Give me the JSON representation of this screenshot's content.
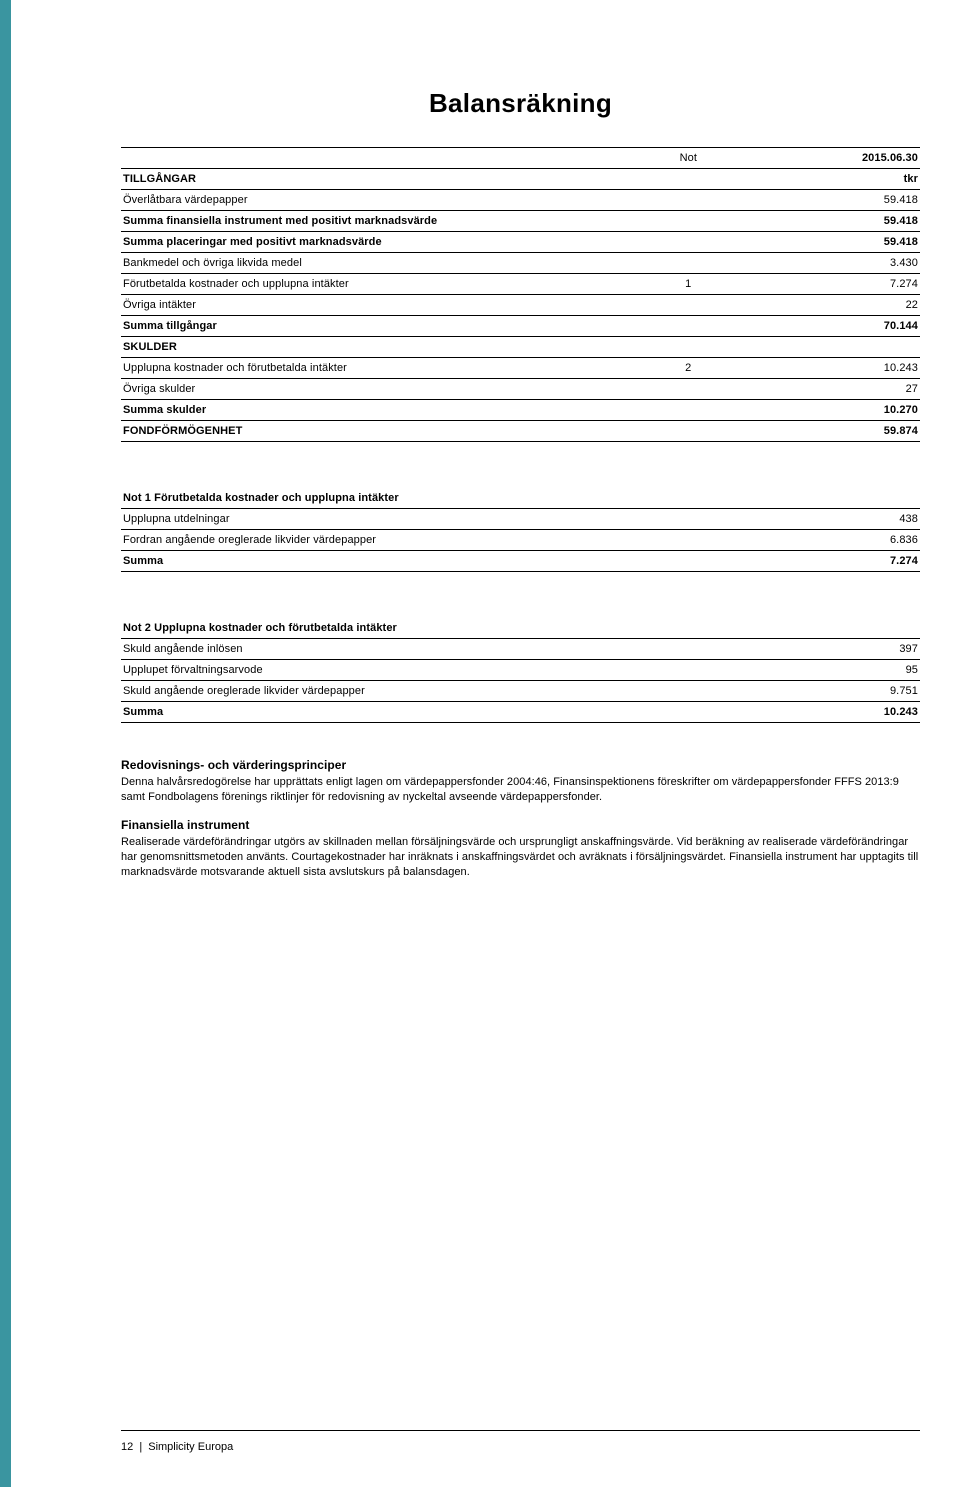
{
  "title": "Balansräkning",
  "columns": {
    "not": "Not",
    "date": "2015.06.30"
  },
  "rows": [
    {
      "label": "TILLGÅNGAR",
      "not": "",
      "value": "tkr",
      "bold": true
    },
    {
      "label": "Överlåtbara värdepapper",
      "not": "",
      "value": "59.418"
    },
    {
      "label": "Summa finansiella instrument med positivt marknadsvärde",
      "not": "",
      "value": "59.418",
      "bold": true
    },
    {
      "label": "Summa placeringar med positivt marknadsvärde",
      "not": "",
      "value": "59.418",
      "bold": true
    },
    {
      "label": "Bankmedel och övriga likvida medel",
      "not": "",
      "value": "3.430"
    },
    {
      "label": "Förutbetalda kostnader och upplupna intäkter",
      "not": "1",
      "value": "7.274"
    },
    {
      "label": "Övriga intäkter",
      "not": "",
      "value": "22"
    },
    {
      "label": "Summa tillgångar",
      "not": "",
      "value": "70.144",
      "bold": true
    },
    {
      "label": "SKULDER",
      "not": "",
      "value": "",
      "bold": true
    },
    {
      "label": "Upplupna kostnader och förutbetalda intäkter",
      "not": "2",
      "value": "10.243"
    },
    {
      "label": "Övriga skulder",
      "not": "",
      "value": "27"
    },
    {
      "label": "Summa skulder",
      "not": "",
      "value": "10.270",
      "bold": true
    },
    {
      "label": "FONDFÖRMÖGENHET",
      "not": "",
      "value": "59.874",
      "bold": true
    }
  ],
  "note1": {
    "heading": "Not 1 Förutbetalda kostnader och upplupna intäkter",
    "rows": [
      {
        "label": "Upplupna utdelningar",
        "value": "438"
      },
      {
        "label": "Fordran angående oreglerade likvider värdepapper",
        "value": "6.836"
      }
    ],
    "sum_label": "Summa",
    "sum_value": "7.274"
  },
  "note2": {
    "heading": "Not 2 Upplupna kostnader och förutbetalda intäkter",
    "rows": [
      {
        "label": "Skuld angående inlösen",
        "value": "397"
      },
      {
        "label": "Upplupet förvaltningsarvode",
        "value": "95"
      },
      {
        "label": "Skuld angående oreglerade likvider värdepapper",
        "value": "9.751"
      }
    ],
    "sum_label": "Summa",
    "sum_value": "10.243"
  },
  "sections": [
    {
      "heading": "Redovisnings- och värderingsprinciper",
      "text": "Denna halvårsredogörelse har upprättats enligt lagen om värdepappersfonder 2004:46, Finansinspektionens föreskrifter om värdepappersfonder FFFS 2013:9 samt Fondbolagens förenings riktlinjer för redovisning av nyckeltal avseende värdepappersfonder."
    },
    {
      "heading": "Finansiella instrument",
      "text": "Realiserade värdeförändringar utgörs av skillnaden mellan försäljningsvärde och ursprungligt anskaffningsvärde. Vid beräkning av realiserade värdeförändringar har genomsnittsmetoden använts. Courtagekostnader har inräknats i anskaffningsvärdet och avräknats i försäljningsvärdet. Finansiella instrument har upptagits till marknadsvärde motsvarande aktuell sista avslutskurs på balansdagen."
    }
  ],
  "footer": {
    "page": "12",
    "sep": "|",
    "name": "Simplicity Europa"
  },
  "colors": {
    "accent": "#3a95a0",
    "text": "#000000",
    "rule": "#000000"
  }
}
